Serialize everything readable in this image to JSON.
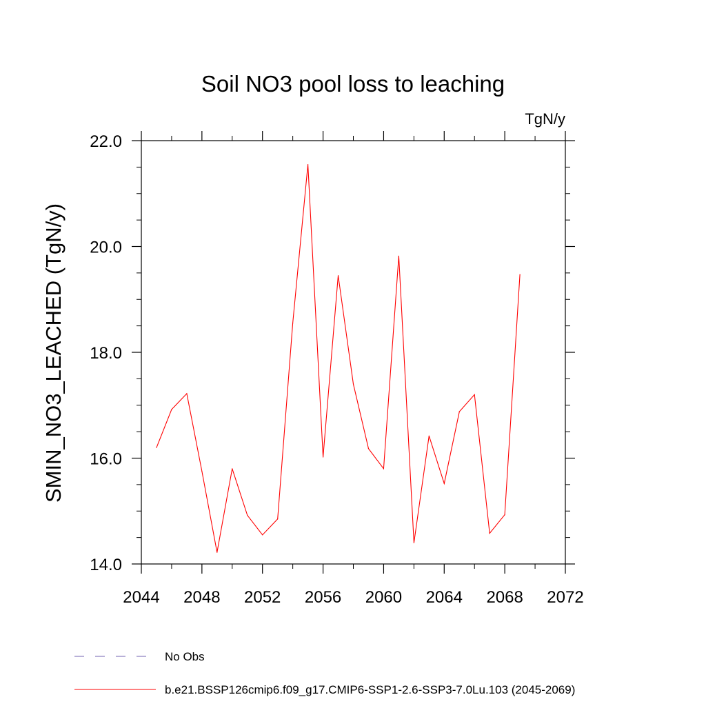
{
  "chart_data": {
    "type": "line",
    "title": "Soil NO3 pool loss to leaching",
    "units_label": "TgN/y",
    "ylabel": "SMIN_NO3_LEACHED  (TgN/y)",
    "xlabel": "",
    "xlim": [
      2044,
      2072
    ],
    "ylim": [
      14.0,
      22.0
    ],
    "x_ticks": [
      2044,
      2048,
      2052,
      2056,
      2060,
      2064,
      2068,
      2072
    ],
    "x_tick_labels": [
      "2044",
      "2048",
      "2052",
      "2056",
      "2060",
      "2064",
      "2068",
      "2072"
    ],
    "y_ticks": [
      14.0,
      16.0,
      18.0,
      20.0,
      22.0
    ],
    "y_tick_labels": [
      "14.0",
      "16.0",
      "18.0",
      "20.0",
      "22.0"
    ],
    "y_minor_step": 0.5,
    "x_minor_step": 2,
    "grid": false,
    "legend_position": "bottom",
    "series": [
      {
        "name": "b.e21.BSSP126cmip6.f09_g17.CMIP6-SSP1-2.6-SSP3-7.0Lu.103 (2045-2069)",
        "color": "#ff0000",
        "dash": "solid",
        "x": [
          2045,
          2046,
          2047,
          2048,
          2049,
          2050,
          2051,
          2052,
          2053,
          2054,
          2055,
          2056,
          2057,
          2058,
          2059,
          2060,
          2061,
          2062,
          2063,
          2064,
          2065,
          2066,
          2067,
          2068,
          2069
        ],
        "values": [
          16.2,
          16.92,
          17.22,
          15.75,
          14.22,
          15.8,
          14.92,
          14.55,
          14.85,
          18.55,
          21.55,
          16.02,
          19.45,
          17.4,
          16.18,
          15.8,
          19.82,
          14.4,
          16.42,
          15.52,
          16.88,
          17.2,
          14.58,
          14.93,
          19.47
        ]
      }
    ],
    "legend": [
      {
        "label": "No Obs",
        "color": "#7060b0",
        "dash": "dashed"
      },
      {
        "label": "b.e21.BSSP126cmip6.f09_g17.CMIP6-SSP1-2.6-SSP3-7.0Lu.103 (2045-2069)",
        "color": "#ff0000",
        "dash": "solid"
      }
    ]
  }
}
